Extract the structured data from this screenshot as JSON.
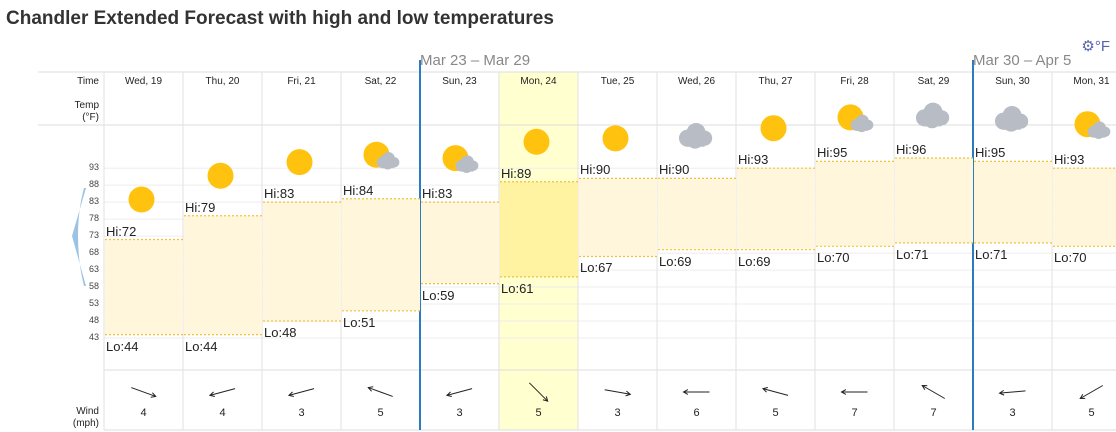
{
  "title": "Chandler Extended Forecast with high and low temperatures",
  "week_labels": [
    {
      "text": "Mar 23 – Mar 29",
      "start_col": 4
    },
    {
      "text": "Mar 30 – Apr 5",
      "start_col": 11
    }
  ],
  "unit": {
    "label": "°F",
    "icon": "gear-icon",
    "color": "#5566aa"
  },
  "row_labels": {
    "time": "Time",
    "temp": "Temp\n(°F)",
    "wind": "Wind\n(mph)"
  },
  "colors": {
    "band": "#fff6dc",
    "band_today": "#fff2a0",
    "today_col": "#ffffd0",
    "week_sep": "#2a7bbf",
    "dotted": "#f0c040",
    "sun": "#ffc20e",
    "cloud": "#b8bcc4",
    "nav": "#9dc3e2"
  },
  "today_index": 5,
  "week_separators_before": [
    4,
    11
  ],
  "chart_data": {
    "type": "range",
    "ylim": [
      43,
      96
    ],
    "y_ticks": [
      43,
      48,
      53,
      58,
      63,
      68,
      73,
      78,
      83,
      88,
      93
    ],
    "categories": [
      "Wed, 19",
      "Thu, 20",
      "Fri, 21",
      "Sat, 22",
      "Sun, 23",
      "Mon, 24",
      "Tue, 25",
      "Wed, 26",
      "Thu, 27",
      "Fri, 28",
      "Sat, 29",
      "Sun, 30",
      "Mon, 31"
    ],
    "series": [
      {
        "name": "Hi",
        "values": [
          72,
          79,
          83,
          84,
          83,
          89,
          90,
          90,
          93,
          95,
          96,
          95,
          93
        ]
      },
      {
        "name": "Lo",
        "values": [
          44,
          44,
          48,
          51,
          59,
          61,
          67,
          69,
          69,
          70,
          71,
          71,
          70
        ]
      }
    ],
    "hi_prefix": "Hi:",
    "lo_prefix": "Lo:",
    "weather": [
      "sun",
      "sun",
      "sun",
      "partly-cloudy",
      "partly-cloudy",
      "sun",
      "sun",
      "cloudy",
      "sun",
      "partly-cloudy",
      "cloudy",
      "cloudy",
      "partly-cloudy"
    ],
    "wind_speed": [
      4,
      4,
      3,
      5,
      3,
      5,
      3,
      6,
      5,
      7,
      7,
      3,
      5
    ],
    "wind_dir_deg": [
      110,
      255,
      255,
      290,
      255,
      135,
      100,
      270,
      285,
      270,
      300,
      265,
      240
    ]
  }
}
